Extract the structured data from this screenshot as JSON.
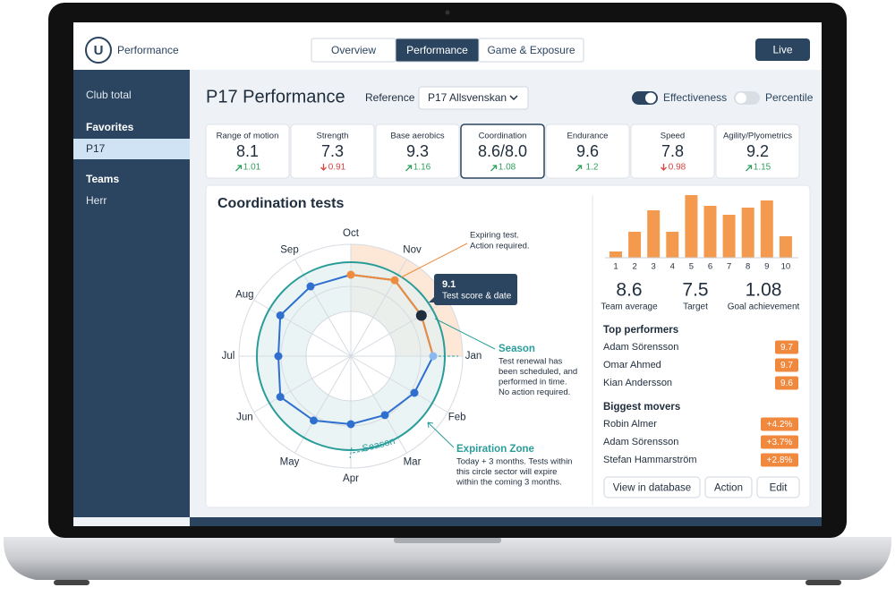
{
  "app": {
    "logo": "U",
    "name": "Performance",
    "tabs": [
      "Overview",
      "Performance",
      "Game & Exposure"
    ],
    "active_tab": 1,
    "live_button": "Live"
  },
  "sidebar": {
    "items": [
      "Club total"
    ],
    "favorites_title": "Favorites",
    "favorites": [
      "P17"
    ],
    "teams_title": "Teams",
    "teams": [
      "Herr"
    ]
  },
  "header": {
    "title": "P17 Performance",
    "reference_label": "Reference",
    "reference_value": "P17 Allsvenskan",
    "toggles": [
      {
        "label": "Effectiveness",
        "on": true
      },
      {
        "label": "Percentile",
        "on": false
      }
    ]
  },
  "kpis": [
    {
      "label": "Range of motion",
      "value": "8.1",
      "change": "1.01",
      "trend": "up"
    },
    {
      "label": "Strength",
      "value": "7.3",
      "change": "0.91",
      "trend": "down"
    },
    {
      "label": "Base aerobics",
      "value": "9.3",
      "change": "1.16",
      "trend": "up"
    },
    {
      "label": "Coordination",
      "value": "8.6/8.0",
      "change": "1.08",
      "trend": "up",
      "selected": true
    },
    {
      "label": "Endurance",
      "value": "9.6",
      "change": "1.2",
      "trend": "up"
    },
    {
      "label": "Speed",
      "value": "7.8",
      "change": "0.98",
      "trend": "down"
    },
    {
      "label": "Agility/Plyometrics",
      "value": "9.2",
      "change": "1.15",
      "trend": "up"
    }
  ],
  "panel": {
    "title": "Coordination tests",
    "radar": {
      "months": [
        "Oct",
        "Nov",
        null,
        "Jan",
        "Feb",
        "Mar",
        "Apr",
        "May",
        "Jun",
        "Jul",
        "Aug",
        "Sep"
      ],
      "rlim": [
        0,
        12.5
      ],
      "values": [
        9.1,
        9.8,
        9.1,
        9.2,
        8.2,
        7.6,
        7.6,
        8.3,
        9.1,
        8.1,
        9.1,
        9.0
      ],
      "expiring": [
        9.1,
        9.8,
        9.1,
        9.2,
        null,
        null,
        null,
        null,
        null,
        null,
        null,
        null
      ],
      "active_index": 2,
      "pending_index": 3,
      "tooltip": {
        "value": "9.1",
        "label": "Test score & date"
      }
    },
    "annotations": {
      "expiring": [
        "Expiring test.",
        "Action required."
      ],
      "season": {
        "title": "Season",
        "lines": [
          "Test renewal has",
          "been scheduled, and",
          "performed in time.",
          "No action required."
        ]
      },
      "zone": {
        "title": "Expiration Zone",
        "lines": [
          "Today + 3 months. Tests within",
          "this circle sector will expire",
          "within the coming 3 months."
        ]
      },
      "arc_label": "Season"
    },
    "bars": {
      "categories": [
        "1",
        "2",
        "3",
        "4",
        "5",
        "6",
        "7",
        "8",
        "9",
        "10"
      ],
      "values": [
        7,
        29,
        53,
        29,
        70,
        58,
        48,
        56,
        64,
        24
      ],
      "ylim": [
        0,
        70
      ],
      "color": "#f39a4f"
    },
    "stats": [
      {
        "value": "8.6",
        "label": "Team average"
      },
      {
        "value": "7.5",
        "label": "Target"
      },
      {
        "value": "1.08",
        "label": "Goal achievement"
      }
    ],
    "top_performers": {
      "title": "Top performers",
      "rows": [
        {
          "name": "Adam Sörensson",
          "score": "9.7"
        },
        {
          "name": "Omar Ahmed",
          "score": "9.7"
        },
        {
          "name": "Kian Andersson",
          "score": "9.6"
        }
      ]
    },
    "movers": {
      "title": "Biggest movers",
      "rows": [
        {
          "name": "Robin Almer",
          "score": "+4.2%"
        },
        {
          "name": "Adam Sörensson",
          "score": "+3.7%"
        },
        {
          "name": "Stefan Hammarström",
          "score": "+2.8%"
        }
      ]
    },
    "buttons": [
      "View in database",
      "Action",
      "Edit"
    ]
  }
}
